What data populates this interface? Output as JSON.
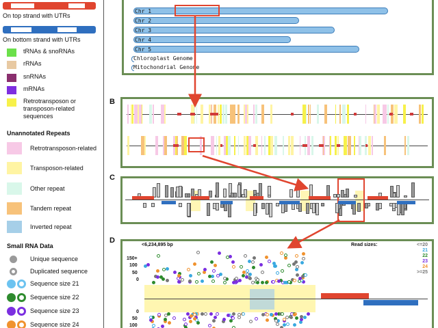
{
  "legend": {
    "top_strand_label": "On top strand with UTRs",
    "bottom_strand_label": "On bottom strand with UTRs",
    "gene_types": [
      {
        "label": "tRNAs & snoRNAs",
        "color": "#6be04a"
      },
      {
        "label": "rRNAs",
        "color": "#e8c9a2"
      },
      {
        "label": "snRNAs",
        "color": "#8a2f6e"
      },
      {
        "label": "mRNAs",
        "color": "#7e2ee0"
      },
      {
        "label": "Retrotransposon or transposon-related sequences",
        "color": "#f7f14a"
      }
    ],
    "repeats_heading": "Unannotated Repeats",
    "repeats": [
      {
        "label": "Retrotransposon-related",
        "color": "#f7c9e6"
      },
      {
        "label": "Transposon-related",
        "color": "#fff4a3"
      },
      {
        "label": "Other repeat",
        "color": "#d9f7ea"
      },
      {
        "label": "Tandem repeat",
        "color": "#f7c27a"
      },
      {
        "label": "Inverted repeat",
        "color": "#a6cfe8"
      }
    ],
    "small_rna_heading": "Small RNA Data",
    "small_rna": [
      {
        "label": "Unique sequence",
        "color": "#9a9a9a"
      },
      {
        "label": "Duplicated sequence",
        "color": "#9a9a9a"
      },
      {
        "label": "Sequence size 21",
        "color": "#6cc3f0"
      },
      {
        "label": "Sequence size 22",
        "color": "#2e8b2e"
      },
      {
        "label": "Sequence size 23",
        "color": "#7b2fe0"
      },
      {
        "label": "Sequence size 24",
        "color": "#f0922e"
      }
    ]
  },
  "panels": {
    "a": {
      "chromosomes": [
        {
          "label": "Chr 1"
        },
        {
          "label": "Chr 2"
        },
        {
          "label": "Chr 3"
        },
        {
          "label": "Chr 4"
        },
        {
          "label": "Chr 5"
        }
      ],
      "organelles": [
        "Chloroplast Genome",
        "Mitochondrial Genome"
      ]
    },
    "b": {
      "letter": "B"
    },
    "c": {
      "letter": "C"
    },
    "d": {
      "letter": "D",
      "position_label": "<6,234,895 bp",
      "y_ticks_top": [
        "150+",
        "100",
        "50",
        "0"
      ],
      "y_ticks_bottom": [
        "0",
        "50",
        "100"
      ],
      "read_sizes_title": "Read sizes:",
      "read_sizes": [
        {
          "label": "<=20",
          "color": "#777777"
        },
        {
          "label": "21",
          "color": "#3aa9e0"
        },
        {
          "label": "22",
          "color": "#2e8b2e"
        },
        {
          "label": "23",
          "color": "#7b2fe0"
        },
        {
          "label": "24",
          "color": "#f0922e"
        },
        {
          "label": ">=25",
          "color": "#777777"
        }
      ]
    }
  },
  "colors": {
    "panel_border": "#6b8e55",
    "highlight": "#e0452f",
    "top_strand": "#e0452f",
    "bottom_strand": "#2f6fbf",
    "chromosome_fill": "#8fc1e8"
  }
}
